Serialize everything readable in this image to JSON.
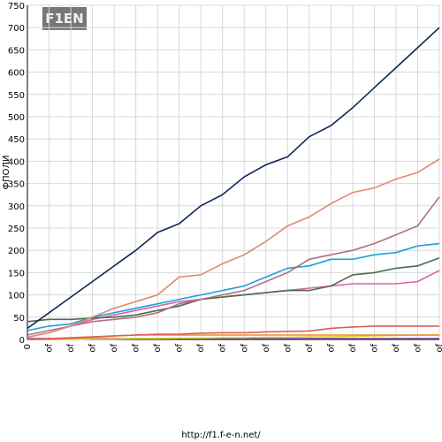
{
  "chart_data": {
    "type": "line",
    "logo": "F1EN",
    "ylabel": "ФПОЛИ",
    "footer": "http://f1.f-e-n.net/",
    "categories": [
      "0",
      "of",
      "of",
      "of",
      "of",
      "of",
      "of",
      "of",
      "of",
      "of",
      "of",
      "of",
      "of",
      "of",
      "of",
      "of",
      "of",
      "of",
      "of",
      "of"
    ],
    "ylim": [
      0,
      750
    ],
    "yticks": [
      0,
      50,
      100,
      150,
      200,
      250,
      300,
      350,
      400,
      450,
      500,
      550,
      600,
      650,
      700,
      750
    ],
    "grid": true,
    "series": [
      {
        "color": "#0b2b5c",
        "values": [
          25,
          60,
          95,
          130,
          165,
          200,
          240,
          260,
          300,
          325,
          365,
          392,
          410,
          455,
          480,
          520,
          565,
          610,
          655,
          700
        ]
      },
      {
        "color": "#e08a6e",
        "values": [
          5,
          15,
          30,
          50,
          70,
          85,
          100,
          140,
          145,
          170,
          190,
          220,
          255,
          275,
          305,
          330,
          340,
          360,
          375,
          405
        ]
      },
      {
        "color": "#b07080",
        "values": [
          10,
          20,
          30,
          40,
          45,
          50,
          60,
          80,
          90,
          100,
          110,
          130,
          150,
          180,
          190,
          200,
          215,
          235,
          255,
          320
        ]
      },
      {
        "color": "#1ea0d8",
        "values": [
          20,
          30,
          35,
          50,
          60,
          70,
          80,
          90,
          100,
          110,
          120,
          140,
          160,
          165,
          180,
          180,
          190,
          195,
          210,
          215
        ]
      },
      {
        "color": "#4a6e4a",
        "values": [
          40,
          45,
          45,
          48,
          50,
          55,
          65,
          75,
          90,
          95,
          100,
          105,
          110,
          110,
          120,
          145,
          150,
          160,
          165,
          183
        ]
      },
      {
        "color": "#e060a8",
        "values": [
          5,
          15,
          30,
          45,
          55,
          65,
          75,
          85,
          90,
          95,
          100,
          105,
          110,
          115,
          120,
          125,
          125,
          125,
          130,
          155
        ]
      },
      {
        "color": "#e05a5a",
        "values": [
          0,
          2,
          4,
          6,
          8,
          10,
          12,
          12,
          14,
          15,
          15,
          17,
          18,
          19,
          25,
          28,
          30,
          30,
          30,
          30
        ]
      },
      {
        "color": "#e09030",
        "values": [
          0,
          0,
          2,
          5,
          8,
          10,
          10,
          10,
          10,
          10,
          10,
          10,
          10,
          10,
          10,
          10,
          10,
          10,
          10,
          10
        ]
      },
      {
        "color": "#e0d020",
        "values": [
          0,
          0,
          0,
          1,
          1,
          2,
          2,
          3,
          3,
          4,
          4,
          5,
          5,
          6,
          6,
          7,
          8,
          9,
          10,
          10
        ]
      },
      {
        "color": "#8040a0",
        "values": [
          2,
          2,
          2,
          2,
          2,
          2,
          2,
          2,
          2,
          2,
          2,
          2,
          2,
          2,
          2,
          2,
          2,
          2,
          2,
          2
        ]
      }
    ]
  }
}
